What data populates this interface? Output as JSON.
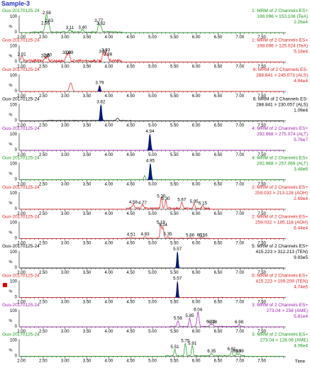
{
  "sample_title": "Sample-3",
  "colors": {
    "green": "#1a9a1a",
    "red": "#e02020",
    "black": "#000000",
    "purple": "#a020b0",
    "peak_fill": "#001a80",
    "axis": "#000000"
  },
  "x_axis": {
    "label": "Time",
    "ticks": [
      "2.00",
      "2.50",
      "3.00",
      "3.50",
      "4.00",
      "4.50",
      "5.00",
      "5.50",
      "6.00",
      "6.50",
      "7.00",
      "7.50"
    ],
    "range": [
      1.95,
      8.05
    ]
  },
  "y_axis_label": "%",
  "y_ticks": [
    "100",
    "0"
  ],
  "marker_panel": 9,
  "chart_data": {
    "type": "line",
    "x_unit": "min",
    "panels": [
      {
        "sample": "Guo-20170125-24",
        "color": "green",
        "header": [
          "1: MRM of 2 Channels ES+",
          "198.096 > 153.106 (TeA)",
          "2.26e4"
        ],
        "peaks": [
          {
            "rt": 2.55,
            "h": 0.4,
            "w": 0.05,
            "label": "2.55"
          },
          {
            "rt": 2.58,
            "h": 1.0,
            "w": 0.04,
            "label": "2.58"
          },
          {
            "rt": 2.63,
            "h": 0.55,
            "w": 0.04,
            "label": "2.63"
          },
          {
            "rt": 3.11,
            "h": 0.12,
            "w": 0.06,
            "label": "3.11"
          },
          {
            "rt": 3.4,
            "h": 0.15,
            "w": 0.06,
            "label": "3.40"
          },
          {
            "rt": 3.77,
            "h": 0.55,
            "w": 0.04,
            "label": "3.77"
          },
          {
            "rt": 3.82,
            "h": 0.38,
            "w": 0.04,
            "label": "3.82"
          }
        ],
        "noise": 0.07,
        "noise_range": [
          2.2,
          4.3
        ]
      },
      {
        "sample": "Guo-20170125-24",
        "color": "red",
        "header": [
          "1: MRM of 2 Channels ES+",
          "198.096 > 125.024 (TeA)",
          "5.18e4"
        ],
        "peaks": [
          {
            "rt": 2.01,
            "h": 0.3,
            "w": 0.05,
            "label": "2.01"
          },
          {
            "rt": 2.55,
            "h": 0.2,
            "w": 0.05,
            "label": "2.55"
          },
          {
            "rt": 2.6,
            "h": 0.25,
            "w": 0.04,
            "label": "2.60"
          },
          {
            "rt": 3.04,
            "h": 0.4,
            "w": 0.05,
            "label": "3.04"
          },
          {
            "rt": 3.09,
            "h": 0.4,
            "w": 0.04,
            "label": "3.09"
          },
          {
            "rt": 3.87,
            "h": 0.45,
            "w": 0.04,
            "label": "3.87"
          },
          {
            "rt": 3.93,
            "h": 0.55,
            "w": 0.04,
            "label": "3.93"
          },
          {
            "rt": 3.98,
            "h": 0.3,
            "w": 0.04,
            "label": "3.98"
          }
        ],
        "noise": 0.15,
        "noise_range": [
          1.97,
          4.3
        ]
      },
      {
        "sample": "Guo-20170125-24",
        "color": "red",
        "header": [
          "6: MRM of 2 Channels ES-",
          "288.841 > 245.073 (ALS)",
          "4.94e4"
        ],
        "peaks": [
          {
            "rt": 3.13,
            "h": 0.5,
            "w": 0.07,
            "label": ""
          },
          {
            "rt": 3.79,
            "h": 0.35,
            "w": 0.04,
            "label": "3.79",
            "fill": true
          }
        ],
        "noise": 0.0,
        "noise_range": [
          2.0,
          8.0
        ]
      },
      {
        "sample": "Guo-20170125-24",
        "color": "black",
        "header": [
          "6: MRM of 2 Channels ES-",
          "288.841 > 230.057 (ALS)",
          "1.09e4"
        ],
        "peaks": [
          {
            "rt": 3.82,
            "h": 0.95,
            "w": 0.04,
            "label": "3.82",
            "fill": true
          },
          {
            "rt": 4.2,
            "h": 0.15,
            "w": 0.05,
            "label": ""
          }
        ],
        "noise": 0.04,
        "noise_range": [
          2.5,
          4.5
        ]
      },
      {
        "sample": "Guo-20170125-24",
        "color": "purple",
        "header": [
          "4: MRM of 2 Channels ES+",
          "292.968 > 275.074 (ALT)",
          "5.76e7"
        ],
        "peaks": [
          {
            "rt": 4.94,
            "h": 0.95,
            "w": 0.045,
            "label": "4.94",
            "fill": true
          }
        ],
        "noise": 0.0,
        "noise_range": [
          2.0,
          8.0
        ]
      },
      {
        "sample": "Guo-20170125-24",
        "color": "green",
        "header": [
          "4: MRM of 2 Channels ES+",
          "292.968 > 257.069 (ALT)",
          "3.48e6"
        ],
        "peaks": [
          {
            "rt": 4.82,
            "h": 0.25,
            "w": 0.04,
            "label": ""
          },
          {
            "rt": 4.95,
            "h": 0.95,
            "w": 0.045,
            "label": "4.95",
            "fill": true
          }
        ],
        "noise": 0.0,
        "noise_range": [
          2.0,
          8.0
        ]
      },
      {
        "sample": "Guo-20170125-24",
        "color": "red",
        "header": [
          "2: MRM of 2 Channels ES+",
          "259.032 > 213.128 (AOH)",
          "2.69e4"
        ],
        "peaks": [
          {
            "rt": 4.56,
            "h": 0.25,
            "w": 0.05,
            "label": "4.56"
          },
          {
            "rt": 4.77,
            "h": 0.2,
            "w": 0.05,
            "label": "4.77"
          },
          {
            "rt": 5.2,
            "h": 0.6,
            "w": 0.04,
            "label": "5.20"
          },
          {
            "rt": 5.3,
            "h": 0.45,
            "w": 0.04,
            "label": "5.30"
          },
          {
            "rt": 5.67,
            "h": 0.4,
            "w": 0.04,
            "label": "5.67"
          },
          {
            "rt": 5.95,
            "h": 0.3,
            "w": 0.04,
            "label": "5.95"
          },
          {
            "rt": 6.15,
            "h": 0.18,
            "w": 0.04,
            "label": "6.15"
          }
        ],
        "noise": 0.1,
        "noise_range": [
          4.4,
          6.3
        ]
      },
      {
        "sample": "Guo-20170125-24",
        "color": "red",
        "header": [
          "2: MRM of 2 Channels ES+",
          "259.032 > 185.118 (AOH)",
          "6.44e4"
        ],
        "peaks": [
          {
            "rt": 4.51,
            "h": 0.08,
            "w": 0.05,
            "label": "4.51"
          },
          {
            "rt": 4.83,
            "h": 0.1,
            "w": 0.05,
            "label": "4.83"
          },
          {
            "rt": 5.19,
            "h": 0.8,
            "w": 0.04,
            "label": "5.19"
          },
          {
            "rt": 5.24,
            "h": 0.65,
            "w": 0.04,
            "label": "5.24"
          },
          {
            "rt": 5.35,
            "h": 0.1,
            "w": 0.04,
            "label": "5.35"
          },
          {
            "rt": 5.86,
            "h": 0.05,
            "w": 0.04,
            "label": "5.86"
          },
          {
            "rt": 6.11,
            "h": 0.05,
            "w": 0.04,
            "label": "6.11"
          },
          {
            "rt": 6.16,
            "h": 0.04,
            "w": 0.04,
            "label": "6.16"
          }
        ],
        "noise": 0.04,
        "noise_range": [
          4.3,
          6.3
        ]
      },
      {
        "sample": "Guo-20170125-24",
        "color": "black",
        "header": [
          "5: MRM of 2 Channels ES+",
          "415.223 > 312.213 (TEN)",
          "9.93e5"
        ],
        "peaks": [
          {
            "rt": 5.57,
            "h": 0.95,
            "w": 0.035,
            "label": "5.57",
            "fill": true
          }
        ],
        "noise": 0.0,
        "noise_range": [
          2.0,
          8.0
        ]
      },
      {
        "sample": "Guo-20170125-24",
        "color": "red",
        "header": [
          "5: MRM of 2 Channels ES+",
          "415.223 > 199.209 (TEN)",
          "4.74e5"
        ],
        "peaks": [
          {
            "rt": 5.57,
            "h": 0.95,
            "w": 0.035,
            "label": "5.57",
            "fill": true
          }
        ],
        "noise": 0.0,
        "noise_range": [
          2.0,
          8.0
        ]
      },
      {
        "sample": "Guo-20170125-24",
        "color": "purple",
        "header": [
          "3: MRM of 2 Channels ES+",
          "273.04 > 258 (AME)",
          "5.81e4"
        ],
        "peaks": [
          {
            "rt": 5.58,
            "h": 0.35,
            "w": 0.04,
            "label": "5.58"
          },
          {
            "rt": 5.85,
            "h": 0.5,
            "w": 0.04,
            "label": "5.85"
          },
          {
            "rt": 6.04,
            "h": 0.85,
            "w": 0.05,
            "label": "6.04"
          },
          {
            "rt": 6.33,
            "h": 0.15,
            "w": 0.04,
            "label": "6.33"
          },
          {
            "rt": 6.38,
            "h": 0.12,
            "w": 0.04,
            "label": "6.38"
          },
          {
            "rt": 6.98,
            "h": 0.12,
            "w": 0.04,
            "label": "6.98"
          }
        ],
        "noise": 0.05,
        "noise_range": [
          5.4,
          7.1
        ]
      },
      {
        "sample": "Guo-20170125-24",
        "color": "green",
        "header": [
          "3: MRM of 2 Channels ES+",
          "273.04 > 128.06 (AME)",
          "4.06e4"
        ],
        "peaks": [
          {
            "rt": 5.51,
            "h": 0.4,
            "w": 0.04,
            "label": "5.51"
          },
          {
            "rt": 5.75,
            "h": 0.75,
            "w": 0.04,
            "label": "5.75"
          },
          {
            "rt": 5.91,
            "h": 0.6,
            "w": 0.04,
            "label": "5.91"
          },
          {
            "rt": 6.35,
            "h": 0.15,
            "w": 0.04,
            "label": "6.35"
          },
          {
            "rt": 6.81,
            "h": 0.28,
            "w": 0.04,
            "label": "6.81"
          },
          {
            "rt": 6.93,
            "h": 0.15,
            "w": 0.04,
            "label": "6.93"
          },
          {
            "rt": 6.99,
            "h": 0.15,
            "w": 0.04,
            "label": "6.99"
          }
        ],
        "noise": 0.06,
        "noise_range": [
          5.3,
          7.1
        ]
      }
    ]
  }
}
